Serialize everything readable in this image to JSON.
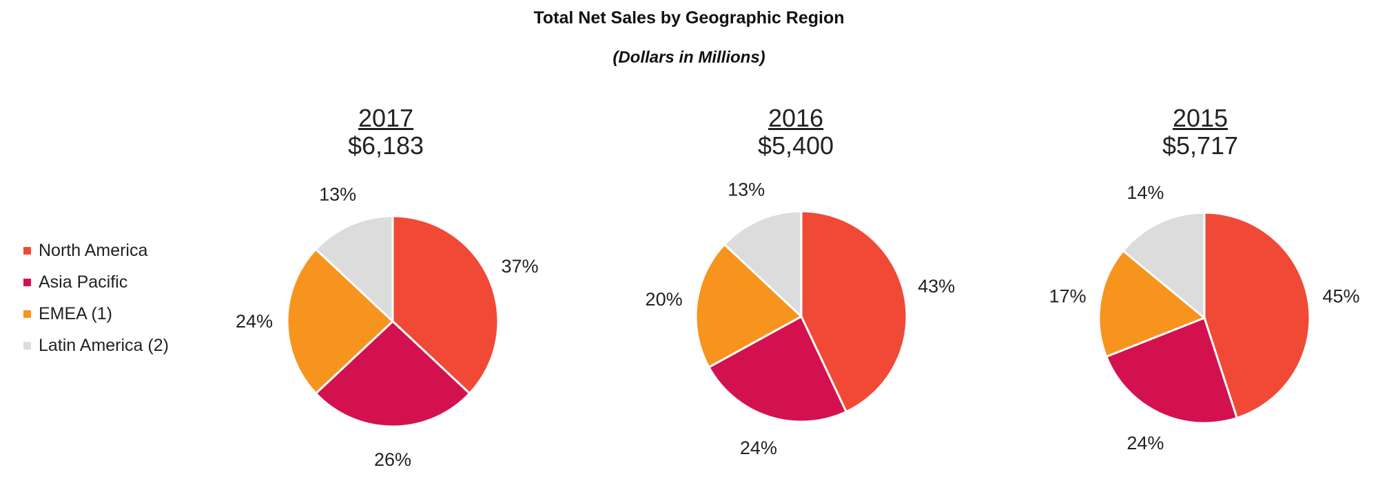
{
  "chart_data": {
    "type": "pie",
    "title": "Total Net Sales by Geographic Region",
    "subtitle": "(Dollars in Millions)",
    "categories": [
      "North America",
      "Asia Pacific",
      "EMEA (1)",
      "Latin America (2)"
    ],
    "colors": [
      "#F04A37",
      "#D3114F",
      "#F7941D",
      "#DCDCDC"
    ],
    "pies": [
      {
        "year": "2017",
        "total": "$6,183",
        "values": [
          37,
          26,
          24,
          13
        ],
        "labels": [
          "37%",
          "26%",
          "24%",
          "13%"
        ]
      },
      {
        "year": "2016",
        "total": "$5,400",
        "values": [
          43,
          24,
          20,
          13
        ],
        "labels": [
          "43%",
          "24%",
          "20%",
          "13%"
        ]
      },
      {
        "year": "2015",
        "total": "$5,717",
        "values": [
          45,
          24,
          17,
          14
        ],
        "labels": [
          "45%",
          "24%",
          "17%",
          "14%"
        ]
      }
    ]
  }
}
